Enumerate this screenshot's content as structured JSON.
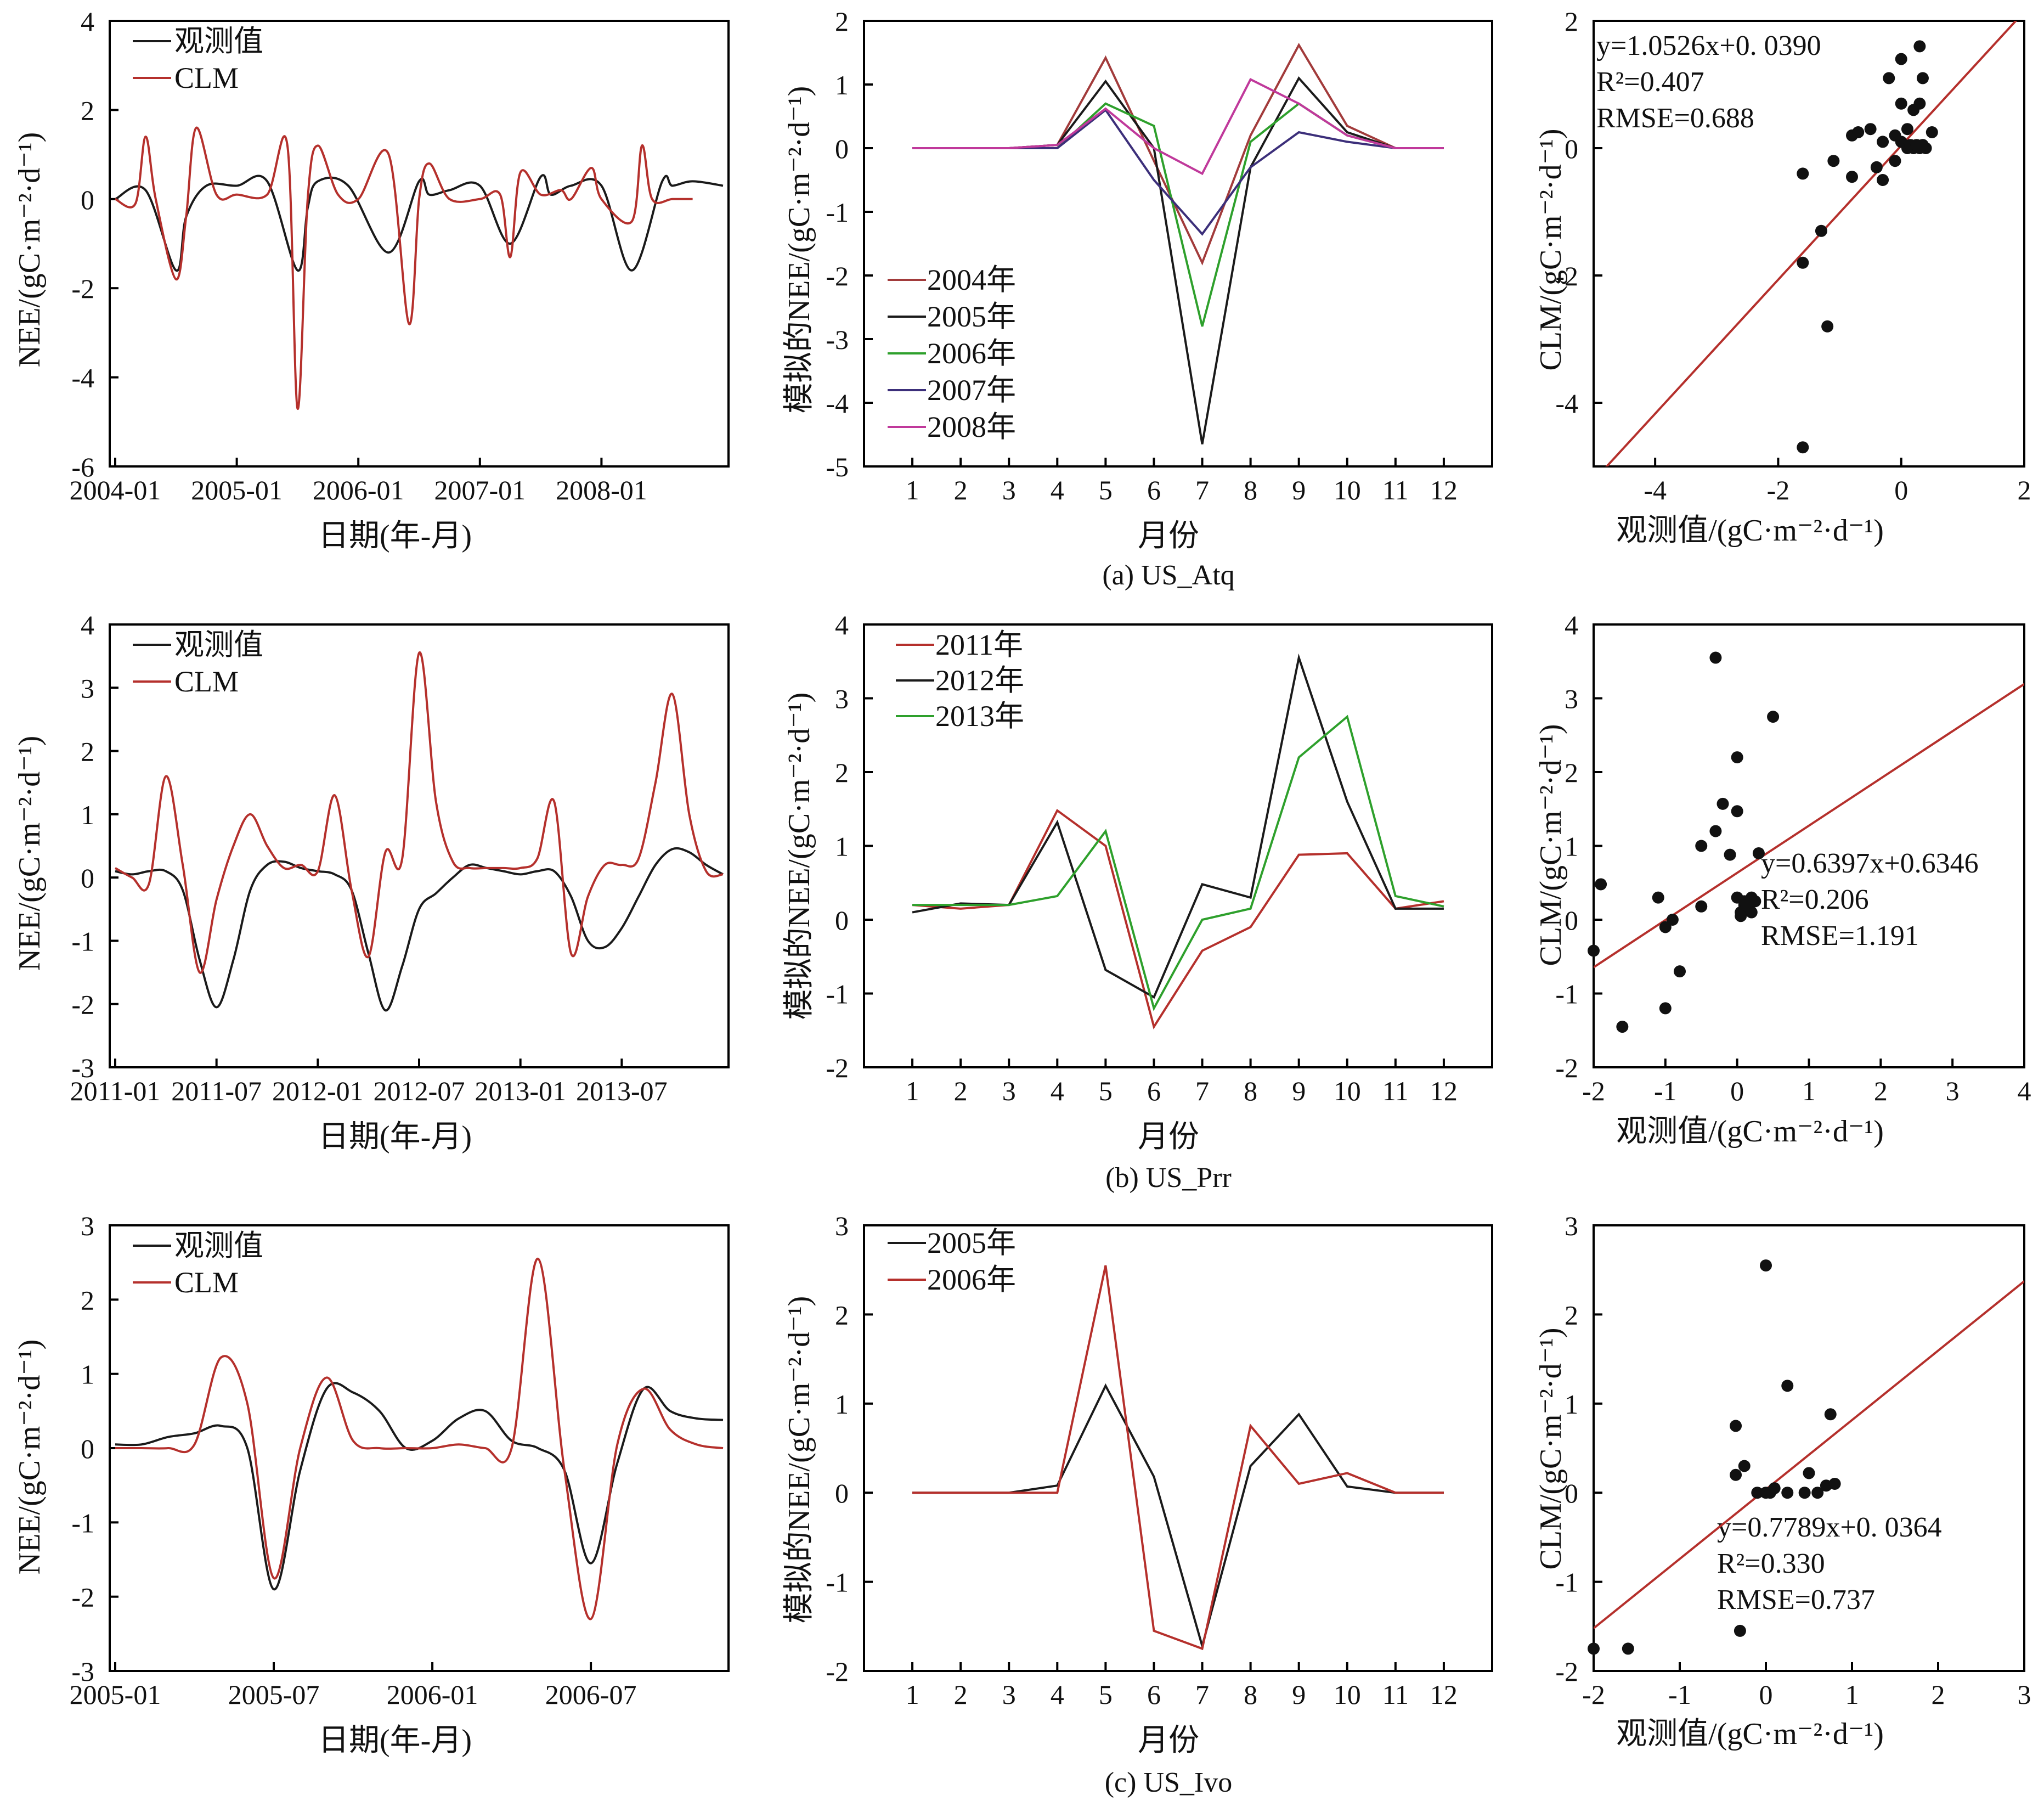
{
  "captions": [
    "(a) US_Atq",
    "(b) US_Prr",
    "(c) US_Ivo"
  ],
  "labels": {
    "ts_x": "日期(年-月)",
    "ts_y": "NEE/(gC·m⁻²·d⁻¹)",
    "mon_x": "月份",
    "mon_y": "模拟的NEE/(gC·m⁻²·d⁻¹)",
    "sc_x": "观测值/(gC·m⁻²·d⁻¹)",
    "sc_y": "CLM/(gC·m⁻²·d⁻¹)"
  },
  "legend": {
    "obs": "观测值",
    "clm": "CLM"
  },
  "colors": {
    "obs": "#1a1a1a",
    "clm": "#b5302c",
    "fit": "#b5302c",
    "y2004": "#a23b3b",
    "y2005": "#1a1a1a",
    "y2006": "#2ea02c",
    "y2007": "#3c2f7a",
    "y2008": "#c0399b",
    "y2011": "#b5302c",
    "y2012": "#1a1a1a",
    "y2013": "#2ea02c"
  },
  "chart_data": [
    {
      "type": "line",
      "panel": "a-timeseries",
      "x_ticks": [
        "2004-01",
        "2005-01",
        "2006-01",
        "2007-01",
        "2008-01"
      ],
      "ylim": [
        -6,
        4
      ],
      "y_ticks": [
        -6,
        -4,
        -2,
        0,
        2,
        4
      ],
      "x_domain_months": [
        0,
        60
      ],
      "series": [
        {
          "name": "观测值",
          "color_key": "obs",
          "x_months": [
            0,
            3,
            6,
            7,
            9,
            12,
            15,
            18,
            19,
            20,
            23,
            27,
            30,
            31,
            33,
            36,
            39,
            42,
            43,
            45,
            48,
            51,
            54,
            55,
            57,
            60
          ],
          "values": [
            0.0,
            0.2,
            -1.6,
            -0.4,
            0.3,
            0.3,
            0.4,
            -1.6,
            -0.2,
            0.4,
            0.3,
            -1.2,
            0.4,
            0.1,
            0.2,
            0.3,
            -1.0,
            0.5,
            0.1,
            0.3,
            0.3,
            -1.6,
            0.4,
            0.3,
            0.4,
            0.3
          ]
        },
        {
          "name": "CLM",
          "color_key": "clm",
          "x_months": [
            0,
            2,
            3,
            4,
            6,
            7,
            8,
            10,
            12,
            15,
            17,
            18,
            19,
            20,
            22,
            24,
            27,
            29,
            30,
            31,
            33,
            36,
            38,
            39,
            40,
            42,
            44,
            45,
            47,
            48,
            51,
            52,
            53,
            55,
            57
          ],
          "values": [
            0.0,
            -0.1,
            1.4,
            0.0,
            -1.8,
            -0.4,
            1.6,
            0.1,
            0.1,
            0.1,
            1.2,
            -4.7,
            0.0,
            1.2,
            0.1,
            0.0,
            1.0,
            -2.8,
            0.0,
            0.8,
            0.0,
            0.0,
            0.1,
            -1.3,
            0.6,
            0.1,
            0.2,
            0.0,
            0.7,
            0.0,
            -0.5,
            1.2,
            0.0,
            0.0,
            0.0
          ]
        }
      ],
      "legend": "top-left"
    },
    {
      "type": "line",
      "panel": "a-monthly",
      "categories": [
        1,
        2,
        3,
        4,
        5,
        6,
        7,
        8,
        9,
        10,
        11,
        12
      ],
      "ylim": [
        -5,
        2
      ],
      "y_ticks": [
        -5,
        -4,
        -3,
        -2,
        -1,
        0,
        1,
        2
      ],
      "series": [
        {
          "name": "2004年",
          "color_key": "y2004",
          "values": [
            0,
            0,
            0,
            0.05,
            1.42,
            -0.2,
            -1.8,
            0.2,
            1.62,
            0.35,
            0,
            0
          ]
        },
        {
          "name": "2005年",
          "color_key": "y2005",
          "values": [
            0,
            0,
            0,
            0.05,
            1.05,
            0.0,
            -4.65,
            -0.3,
            1.1,
            0.25,
            0,
            0
          ]
        },
        {
          "name": "2006年",
          "color_key": "y2006",
          "values": [
            0,
            0,
            0,
            0.0,
            0.7,
            0.35,
            -2.8,
            0.1,
            0.7,
            0.2,
            0,
            0
          ]
        },
        {
          "name": "2007年",
          "color_key": "y2007",
          "values": [
            0,
            0,
            0,
            0.0,
            0.6,
            -0.5,
            -1.35,
            -0.3,
            0.25,
            0.1,
            0,
            0
          ]
        },
        {
          "name": "2008年",
          "color_key": "y2008",
          "values": [
            0,
            0,
            0,
            0.05,
            0.62,
            0.0,
            -0.4,
            1.08,
            0.7,
            0.2,
            0,
            0
          ]
        }
      ],
      "legend": "bottom-left"
    },
    {
      "type": "scatter",
      "panel": "a-scatter",
      "xlim": [
        -5,
        2
      ],
      "ylim": [
        -5,
        2
      ],
      "x_ticks": [
        -4,
        -2,
        0,
        2
      ],
      "y_ticks": [
        -4,
        -2,
        0,
        2
      ],
      "points": [
        [
          -1.6,
          -4.7
        ],
        [
          -1.6,
          -1.8
        ],
        [
          -1.3,
          -1.3
        ],
        [
          -1.2,
          -2.8
        ],
        [
          -1.6,
          -0.4
        ],
        [
          -0.4,
          -0.3
        ],
        [
          -0.5,
          0.3
        ],
        [
          -0.3,
          0.1
        ],
        [
          -0.1,
          0.2
        ],
        [
          0.0,
          0.1
        ],
        [
          0.1,
          0.3
        ],
        [
          0.3,
          0.7
        ],
        [
          0.35,
          1.1
        ],
        [
          0.3,
          1.6
        ],
        [
          0.0,
          1.4
        ],
        [
          -0.2,
          1.1
        ],
        [
          0.0,
          0.7
        ],
        [
          -0.3,
          -0.5
        ],
        [
          0.2,
          0.0
        ],
        [
          0.3,
          0.0
        ],
        [
          0.4,
          0.0
        ],
        [
          0.1,
          0.0
        ],
        [
          0.5,
          0.25
        ],
        [
          -0.8,
          0.2
        ],
        [
          -0.7,
          0.25
        ],
        [
          -0.1,
          -0.2
        ],
        [
          0.2,
          0.6
        ],
        [
          0.15,
          0.05
        ],
        [
          0.25,
          0.05
        ],
        [
          0.35,
          0.05
        ],
        [
          -0.8,
          -0.45
        ],
        [
          -1.1,
          -0.2
        ]
      ],
      "fit": {
        "slope": 1.0526,
        "intercept": 0.039
      },
      "annotations": [
        "y=1.0526x+0. 0390",
        "R²=0.407",
        "RMSE=0.688"
      ]
    },
    {
      "type": "line",
      "panel": "b-timeseries",
      "x_ticks": [
        "2011-01",
        "2011-07",
        "2012-01",
        "2012-07",
        "2013-01",
        "2013-07"
      ],
      "ylim": [
        -3,
        4
      ],
      "y_ticks": [
        -3,
        -2,
        -1,
        0,
        1,
        2,
        3,
        4
      ],
      "x_domain_months": [
        0,
        36
      ],
      "series": [
        {
          "name": "观测值",
          "color_key": "obs",
          "x_months": [
            0,
            1,
            2,
            3,
            4,
            5,
            6,
            7,
            8,
            9,
            10,
            11,
            12,
            13,
            14,
            15,
            16,
            17,
            18,
            19,
            20,
            21,
            22,
            23,
            24,
            25,
            26,
            27,
            28,
            29,
            30,
            31,
            32,
            33,
            34,
            35,
            36
          ],
          "values": [
            0.1,
            0.05,
            0.1,
            0.1,
            -0.2,
            -1.3,
            -2.05,
            -1.3,
            -0.2,
            0.2,
            0.25,
            0.15,
            0.1,
            0.05,
            -0.2,
            -1.2,
            -2.1,
            -1.4,
            -0.5,
            -0.25,
            0.0,
            0.2,
            0.15,
            0.1,
            0.05,
            0.1,
            0.1,
            -0.3,
            -1.0,
            -1.1,
            -0.8,
            -0.3,
            0.2,
            0.45,
            0.4,
            0.2,
            0.05
          ]
        },
        {
          "name": "CLM",
          "color_key": "clm",
          "x_months": [
            0,
            1,
            2,
            3,
            4,
            5,
            6,
            7,
            8,
            9,
            10,
            11,
            12,
            13,
            14,
            15,
            16,
            17,
            18,
            19,
            20,
            21,
            22,
            23,
            24,
            25,
            26,
            27,
            28,
            29,
            30,
            31,
            32,
            33,
            34,
            35,
            36
          ],
          "values": [
            0.15,
            0.0,
            -0.1,
            1.6,
            0.2,
            -1.5,
            -0.35,
            0.5,
            1.0,
            0.5,
            0.15,
            0.2,
            0.1,
            1.3,
            -0.2,
            -1.25,
            0.4,
            0.3,
            3.55,
            1.2,
            0.25,
            0.15,
            0.15,
            0.15,
            0.15,
            0.3,
            1.2,
            -1.2,
            -0.3,
            0.2,
            0.2,
            0.3,
            1.5,
            2.9,
            1.0,
            0.1,
            0.05
          ]
        }
      ],
      "legend": "top-left"
    },
    {
      "type": "line",
      "panel": "b-monthly",
      "categories": [
        1,
        2,
        3,
        4,
        5,
        6,
        7,
        8,
        9,
        10,
        11,
        12
      ],
      "ylim": [
        -2,
        4
      ],
      "y_ticks": [
        -2,
        -1,
        0,
        1,
        2,
        3,
        4
      ],
      "series": [
        {
          "name": "2011年",
          "color_key": "y2011",
          "values": [
            0.2,
            0.15,
            0.2,
            1.48,
            1.0,
            -1.45,
            -0.42,
            -0.1,
            0.88,
            0.9,
            0.15,
            0.25
          ]
        },
        {
          "name": "2012年",
          "color_key": "y2012",
          "values": [
            0.1,
            0.22,
            0.2,
            1.32,
            -0.68,
            -1.05,
            0.48,
            0.3,
            3.55,
            1.6,
            0.15,
            0.15
          ]
        },
        {
          "name": "2013年",
          "color_key": "y2013",
          "values": [
            0.2,
            0.2,
            0.2,
            0.32,
            1.2,
            -1.2,
            0.0,
            0.15,
            2.2,
            2.75,
            0.32,
            0.18
          ]
        }
      ],
      "legend": "top-left"
    },
    {
      "type": "scatter",
      "panel": "b-scatter",
      "xlim": [
        -2,
        4
      ],
      "ylim": [
        -2,
        4
      ],
      "x_ticks": [
        -2,
        -1,
        0,
        1,
        2,
        3,
        4
      ],
      "y_ticks": [
        -2,
        -1,
        0,
        1,
        2,
        3,
        4
      ],
      "points": [
        [
          -0.3,
          3.55
        ],
        [
          0.5,
          2.75
        ],
        [
          0.0,
          2.2
        ],
        [
          -0.2,
          1.57
        ],
        [
          0.0,
          1.47
        ],
        [
          -0.3,
          1.2
        ],
        [
          -0.5,
          1.0
        ],
        [
          0.3,
          0.9
        ],
        [
          -0.1,
          0.88
        ],
        [
          0.2,
          0.3
        ],
        [
          0.1,
          0.2
        ],
        [
          0.05,
          0.1
        ],
        [
          0.15,
          0.15
        ],
        [
          0.25,
          0.25
        ],
        [
          0.0,
          0.3
        ],
        [
          0.1,
          0.25
        ],
        [
          -0.5,
          0.18
        ],
        [
          -1.1,
          0.3
        ],
        [
          -1.9,
          0.48
        ],
        [
          -0.9,
          0.0
        ],
        [
          -1.0,
          -0.1
        ],
        [
          -0.8,
          -0.7
        ],
        [
          -2.0,
          -0.42
        ],
        [
          -1.0,
          -1.2
        ],
        [
          -1.6,
          -1.45
        ],
        [
          0.15,
          0.2
        ],
        [
          0.2,
          0.1
        ],
        [
          0.05,
          0.05
        ]
      ],
      "fit": {
        "slope": 0.6397,
        "intercept": 0.6346
      },
      "annotations": [
        "y=0.6397x+0.6346",
        "R²=0.206",
        "RMSE=1.191"
      ]
    },
    {
      "type": "line",
      "panel": "c-timeseries",
      "x_ticks": [
        "2005-01",
        "2005-07",
        "2006-01",
        "2006-07"
      ],
      "ylim": [
        -3,
        3
      ],
      "y_ticks": [
        -3,
        -2,
        -1,
        0,
        1,
        2,
        3
      ],
      "x_domain_months": [
        0,
        23
      ],
      "series": [
        {
          "name": "观测值",
          "color_key": "obs",
          "x_months": [
            0,
            1,
            2,
            3,
            4,
            5,
            6,
            7,
            8,
            9,
            10,
            11,
            12,
            13,
            14,
            15,
            16,
            17,
            18,
            19,
            20,
            21,
            22,
            23
          ],
          "values": [
            0.05,
            0.05,
            0.15,
            0.2,
            0.3,
            0.0,
            -1.9,
            -0.3,
            0.8,
            0.75,
            0.5,
            0.0,
            0.1,
            0.4,
            0.5,
            0.1,
            0.0,
            -0.3,
            -1.55,
            -0.2,
            0.8,
            0.5,
            0.4,
            0.38
          ]
        },
        {
          "name": "CLM",
          "color_key": "clm",
          "x_months": [
            0,
            1,
            2,
            3,
            4,
            5,
            6,
            7,
            8,
            9,
            10,
            11,
            12,
            13,
            14,
            15,
            16,
            17,
            18,
            19,
            20,
            21,
            22,
            23
          ],
          "values": [
            0.0,
            0.0,
            0.0,
            0.05,
            1.22,
            0.6,
            -1.75,
            0.0,
            0.95,
            0.1,
            0.0,
            0.0,
            0.0,
            0.05,
            0.0,
            0.0,
            2.55,
            -0.3,
            -2.3,
            0.05,
            0.8,
            0.25,
            0.05,
            0.0
          ]
        }
      ],
      "legend": "top-left"
    },
    {
      "type": "line",
      "panel": "c-monthly",
      "categories": [
        1,
        2,
        3,
        4,
        5,
        6,
        7,
        8,
        9,
        10,
        11,
        12
      ],
      "ylim": [
        -2,
        3
      ],
      "y_ticks": [
        -2,
        -1,
        0,
        1,
        2,
        3
      ],
      "series": [
        {
          "name": "2005年",
          "color_key": "y2005",
          "values": [
            0,
            0,
            0,
            0.08,
            1.2,
            0.18,
            -1.72,
            0.3,
            0.88,
            0.07,
            0,
            0
          ]
        },
        {
          "name": "2006年",
          "color_key": "y2011",
          "values": [
            0,
            0,
            0,
            0.0,
            2.55,
            -1.55,
            -1.75,
            0.75,
            0.1,
            0.22,
            0,
            0
          ]
        }
      ],
      "legend": "top-left"
    },
    {
      "type": "scatter",
      "panel": "c-scatter",
      "xlim": [
        -2,
        3
      ],
      "ylim": [
        -2,
        3
      ],
      "x_ticks": [
        -2,
        -1,
        0,
        1,
        2,
        3
      ],
      "y_ticks": [
        -2,
        -1,
        0,
        1,
        2,
        3
      ],
      "points": [
        [
          0.0,
          2.55
        ],
        [
          0.25,
          1.2
        ],
        [
          0.75,
          0.88
        ],
        [
          -0.35,
          0.75
        ],
        [
          -0.25,
          0.3
        ],
        [
          -0.35,
          0.2
        ],
        [
          0.5,
          0.22
        ],
        [
          -0.1,
          0.0
        ],
        [
          0.0,
          0.0
        ],
        [
          0.1,
          0.05
        ],
        [
          0.05,
          0.0
        ],
        [
          0.25,
          0.0
        ],
        [
          0.45,
          0.0
        ],
        [
          0.6,
          0.0
        ],
        [
          0.7,
          0.08
        ],
        [
          0.8,
          0.1
        ],
        [
          -0.3,
          -1.55
        ],
        [
          -2.0,
          -1.75
        ],
        [
          -1.6,
          -1.75
        ]
      ],
      "fit": {
        "slope": 0.7789,
        "intercept": 0.0364
      },
      "annotations": [
        "y=0.7789x+0. 0364",
        "R²=0.330",
        "RMSE=0.737"
      ]
    }
  ]
}
